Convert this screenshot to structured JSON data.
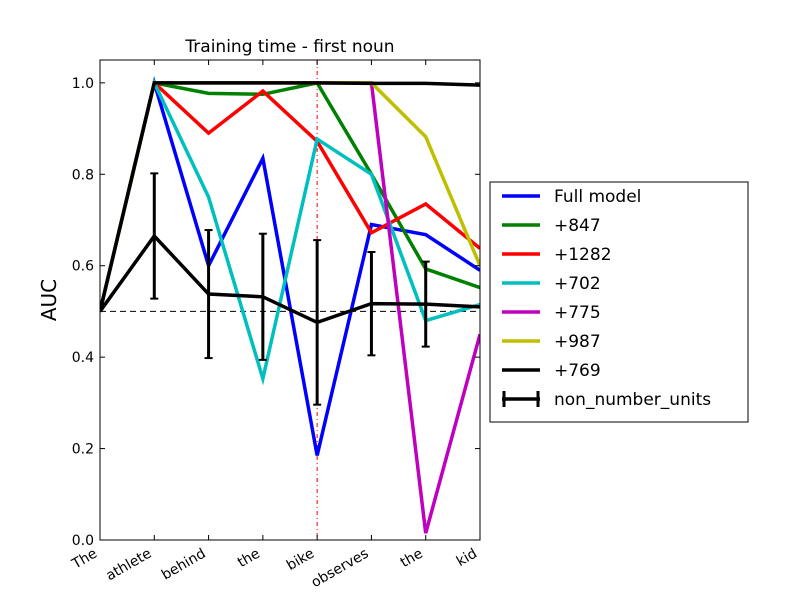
{
  "chart_data": {
    "type": "line",
    "title": "Training time - first noun",
    "xlabel": "",
    "ylabel": "AUC",
    "categories": [
      "The",
      "athlete",
      "behind",
      "the",
      "bike",
      "observes",
      "the",
      "kid"
    ],
    "ylim": [
      0.0,
      1.05
    ],
    "yticks": [
      "0.0",
      "0.2",
      "0.4",
      "0.6",
      "0.8",
      "1.0"
    ],
    "reference_line": 0.5,
    "vertical_marker_category": "bike",
    "series": [
      {
        "name": "Full model",
        "color": "#0000ff",
        "values": [
          0.5,
          1.0,
          0.6,
          0.835,
          0.185,
          0.69,
          0.668,
          0.59
        ]
      },
      {
        "name": "+847",
        "color": "#008000",
        "values": [
          0.5,
          1.0,
          0.977,
          0.975,
          1.0,
          0.8,
          0.593,
          0.552
        ]
      },
      {
        "name": "+1282",
        "color": "#ff0000",
        "values": [
          0.5,
          1.0,
          0.89,
          0.982,
          0.872,
          0.672,
          0.735,
          0.638
        ]
      },
      {
        "name": "+702",
        "color": "#00bfbf",
        "values": [
          0.5,
          1.0,
          0.75,
          0.353,
          0.877,
          0.8,
          0.48,
          0.515
        ]
      },
      {
        "name": "+775",
        "color": "#bf00bf",
        "values": [
          0.5,
          1.0,
          1.0,
          1.0,
          1.0,
          1.0,
          0.015,
          0.45
        ]
      },
      {
        "name": "+987",
        "color": "#bfbf00",
        "values": [
          0.5,
          1.0,
          1.0,
          1.0,
          1.0,
          1.0,
          0.882,
          0.6
        ]
      },
      {
        "name": "+769",
        "color": "#000000",
        "values": [
          0.5,
          1.0,
          1.0,
          1.0,
          1.0,
          0.999,
          0.999,
          0.995
        ]
      }
    ],
    "error_series": {
      "name": "non_number_units",
      "color": "#000000",
      "values": [
        0.5,
        0.665,
        0.538,
        0.532,
        0.476,
        0.517,
        0.516,
        0.51
      ],
      "errors": [
        0.0,
        0.137,
        0.14,
        0.138,
        0.18,
        0.113,
        0.093,
        0.0
      ]
    },
    "legend_position": "right"
  }
}
